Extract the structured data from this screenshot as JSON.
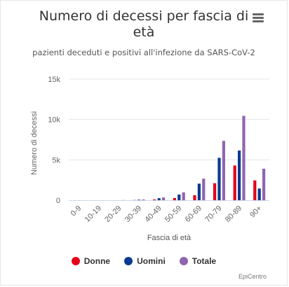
{
  "chart_data": {
    "type": "bar",
    "title": "Numero di decessi per fascia di età",
    "subtitle": "pazienti deceduti e positivi all'infezione da SARS-CoV-2",
    "xlabel": "Fascia di età",
    "ylabel": "Numero di decessi",
    "categories": [
      "0-9",
      "10-19",
      "20-29",
      "30-39",
      "40-49",
      "50-59",
      "60-69",
      "70-79",
      "80-89",
      "90+"
    ],
    "ylim": [
      0,
      15000
    ],
    "yticks": [
      {
        "value": 0,
        "label": "0"
      },
      {
        "value": 5000,
        "label": "5k"
      },
      {
        "value": 10000,
        "label": "10k"
      },
      {
        "value": 15000,
        "label": "15k"
      }
    ],
    "grid": true,
    "legend_position": "bottom",
    "series": [
      {
        "name": "Donne",
        "color": "#e3001b",
        "values": [
          0,
          0,
          5,
          25,
          90,
          270,
          620,
          2100,
          4300,
          2450
        ]
      },
      {
        "name": "Uomini",
        "color": "#0a3a91",
        "values": [
          2,
          3,
          15,
          60,
          250,
          700,
          2050,
          5250,
          6150,
          1450
        ]
      },
      {
        "name": "Totale",
        "color": "#8f65b0",
        "values": [
          2,
          3,
          20,
          85,
          340,
          970,
          2670,
          7350,
          10450,
          3900
        ]
      }
    ]
  },
  "credits": "EpiCentro",
  "icons": {
    "menu": "hamburger-menu-icon"
  }
}
